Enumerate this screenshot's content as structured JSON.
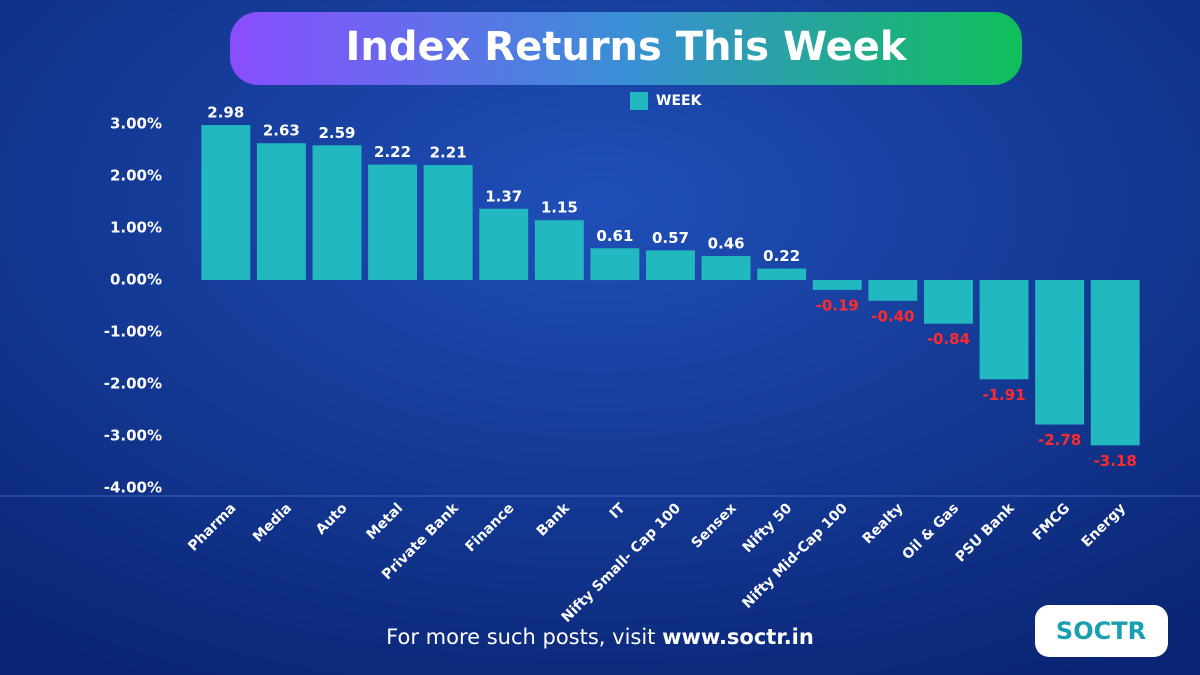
{
  "chart_data": {
    "type": "bar",
    "title": "Index  Returns This Week",
    "categories": [
      "Pharma",
      "Media",
      "Auto",
      "Metal",
      "Private Bank",
      "Finance",
      "Bank",
      "IT",
      "Nifty Small- Cap 100",
      "Sensex",
      "Nifty 50",
      "Nifty Mid-Cap 100",
      "Realty",
      "Oil & Gas",
      "PSU Bank",
      "FMCG",
      "Energy"
    ],
    "series": [
      {
        "name": "WEEK",
        "color": "#22b8c0",
        "values": [
          2.98,
          2.63,
          2.59,
          2.22,
          2.21,
          1.37,
          1.15,
          0.61,
          0.57,
          0.46,
          0.22,
          -0.19,
          -0.4,
          -0.84,
          -1.91,
          -2.78,
          -3.18
        ],
        "value_labels": [
          "2.98",
          "2.63",
          "2.59",
          "2.22",
          "2.21",
          "1.37",
          "1.15",
          "0.61",
          "0.57",
          "0.46",
          "0.22",
          "-0.19",
          "-0.40",
          "-0.84",
          "-1.91",
          "-2.78",
          "-3.18"
        ]
      }
    ],
    "label_colors": {
      "positive": "#ffffff",
      "negative": "#ff2b2b"
    },
    "ylim": [
      -4,
      3.2
    ],
    "yticks": [
      {
        "value": -4,
        "label": "-4.00%"
      },
      {
        "value": -3,
        "label": "-3.00%"
      },
      {
        "value": -2,
        "label": "-2.00%"
      },
      {
        "value": -1,
        "label": "-1.00%"
      },
      {
        "value": 0,
        "label": "0.00%"
      },
      {
        "value": 1,
        "label": "1.00%"
      },
      {
        "value": 2,
        "label": "2.00%"
      },
      {
        "value": 3,
        "label": "3.00%"
      }
    ],
    "grid": false,
    "legend": "top",
    "footer": {
      "text": "For more such posts, visit ",
      "link": "www.soctr.in"
    },
    "brand": "SOCTR"
  }
}
